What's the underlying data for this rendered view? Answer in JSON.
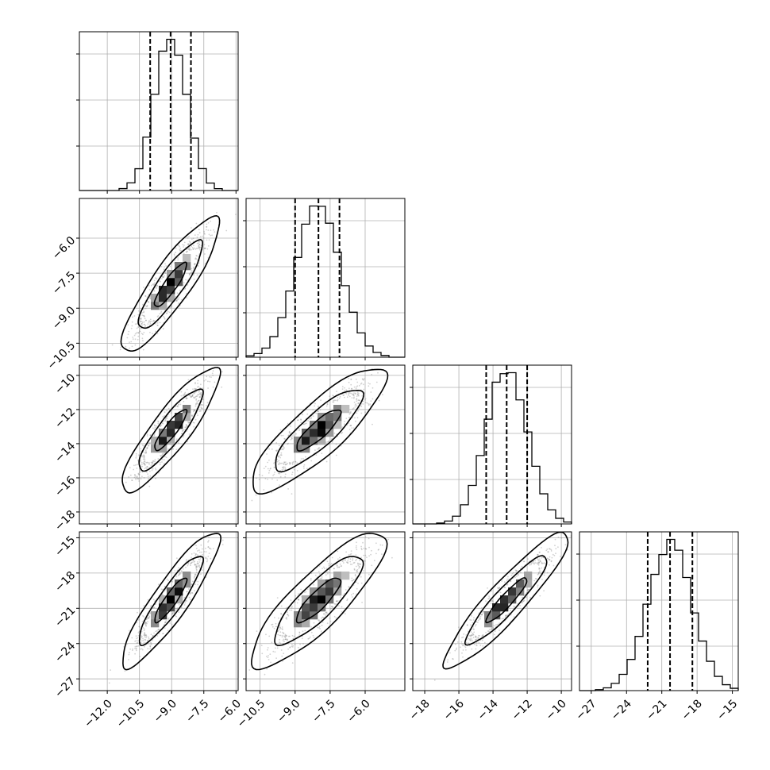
{
  "chart_data": {
    "type": "corner",
    "parameters": [
      {
        "range": [
          -13.3,
          -5.9
        ],
        "ticks": [
          -12.0,
          -10.5,
          -9.0,
          -7.5,
          -6.0
        ],
        "tick_labels": [
          "−12.0",
          "−10.5",
          "−9.0",
          "−7.5",
          "−6.0"
        ],
        "quantiles": [
          -10.0,
          -9.05,
          -8.1
        ],
        "mean": -9.05,
        "sd": 0.75
      },
      {
        "range": [
          -11.1,
          -4.3
        ],
        "ticks": [
          -10.5,
          -9.0,
          -7.5,
          -6.0
        ],
        "tick_labels": [
          "−10.5",
          "−9.0",
          "−7.5",
          "−6.0"
        ],
        "quantiles": [
          -9.0,
          -8.0,
          -7.1
        ],
        "mean": -8.0,
        "sd": 0.95
      },
      {
        "range": [
          -18.7,
          -9.4
        ],
        "ticks": [
          -18,
          -16,
          -14,
          -12,
          -10
        ],
        "tick_labels": [
          "−18",
          "−16",
          "−14",
          "−12",
          "−10"
        ],
        "quantiles": [
          -14.4,
          -13.2,
          -12.0
        ],
        "mean": -13.2,
        "sd": 1.2
      },
      {
        "range": [
          -28.0,
          -14.5
        ],
        "ticks": [
          -27,
          -24,
          -21,
          -18,
          -15
        ],
        "tick_labels": [
          "−27",
          "−24",
          "−21",
          "−18",
          "−15"
        ],
        "quantiles": [
          -22.2,
          -20.3,
          -18.4
        ],
        "mean": -20.3,
        "sd": 1.9
      }
    ],
    "correlations": [
      [
        1.0,
        0.88,
        0.88,
        0.9
      ],
      [
        0.88,
        1.0,
        0.85,
        0.85
      ],
      [
        0.88,
        0.85,
        1.0,
        0.92
      ],
      [
        0.9,
        0.85,
        0.92,
        1.0
      ]
    ],
    "histogram_bins": 20,
    "sample_points_per_panel": 1400,
    "contour_levels": [
      0.39,
      0.86,
      0.99
    ],
    "quantile_line_style": "dashed",
    "grid": true,
    "colors": {
      "line": "#000000",
      "grid": "#b0b0b0",
      "points": "#7f7f7f",
      "density_dark": "#000000",
      "density_light": "#ffffff"
    }
  }
}
